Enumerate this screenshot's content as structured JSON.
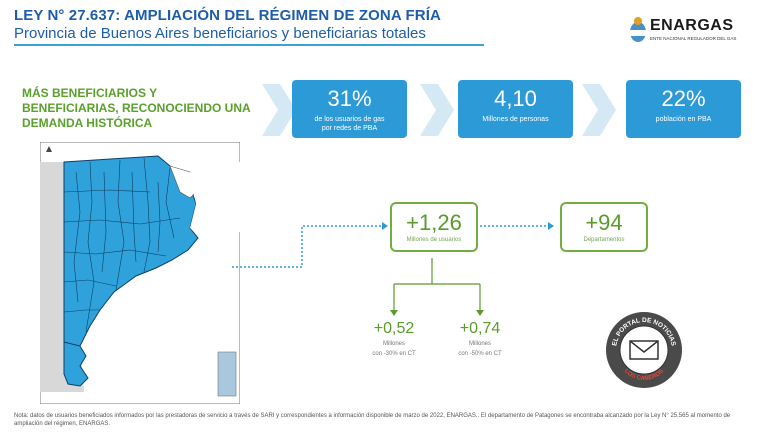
{
  "header": {
    "title": "LEY N° 27.637: AMPLIACIÓN DEL RÉGIMEN DE ZONA FRÍA",
    "subtitle": "Provincia de Buenos Aires beneficiarios y beneficiarias totales"
  },
  "logo": {
    "name": "ENARGAS",
    "tagline": "ENTE NACIONAL REGULADOR DEL GAS"
  },
  "headline": "MÁS BENEFICIARIOS Y BENEFICIARIAS, RECONOCIENDO UNA DEMANDA HISTÓRICA",
  "stats": [
    {
      "value": "31%",
      "label": "de los usuarios de gas por redes de PBA"
    },
    {
      "value": "4,10",
      "label": "Millones de personas"
    },
    {
      "value": "22%",
      "label": "población en PBA"
    }
  ],
  "new_users": {
    "value": "+1,26",
    "label": "Millones de usuarios"
  },
  "departments": {
    "value": "+94",
    "label": "Departamentos"
  },
  "breakdown": [
    {
      "value": "+0,52",
      "label1": "Millones",
      "label2": "con -30% en CT"
    },
    {
      "value": "+0,74",
      "label1": "Millones",
      "label2": "con -50% en CT"
    }
  ],
  "stamp": {
    "top_text": "EL PORTAL DE NOTICIAS",
    "bottom_text": "LOS CAÑEROS"
  },
  "note": "Nota: datos de usuarios beneficiados informados por las prestadoras de servicio a través de SARI y correspondientes a información disponible de marzo de 2022, ENARGAS.. El departamento de Patagones se encontraba alcanzado por la Ley N° 25.565 al momento de ampliación del régimen, ENARGAS.",
  "colors": {
    "blue": "#2d9ad8",
    "green": "#5b9a2d",
    "title": "#1e5ea8"
  }
}
